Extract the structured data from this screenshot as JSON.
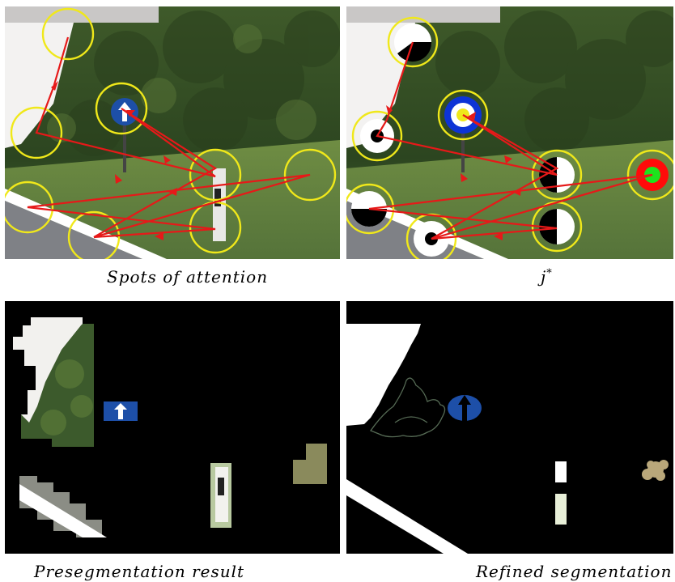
{
  "captions": {
    "top_left": "Spots of attention",
    "top_right": "j*",
    "bottom_left": "Presegmentation result",
    "bottom_right": "Refined segmentation"
  },
  "colors": {
    "attention_circle": "#f0e81a",
    "scanpath": "#e61919",
    "sign_blue": "#1d4fa8",
    "background_black": "#000000"
  }
}
